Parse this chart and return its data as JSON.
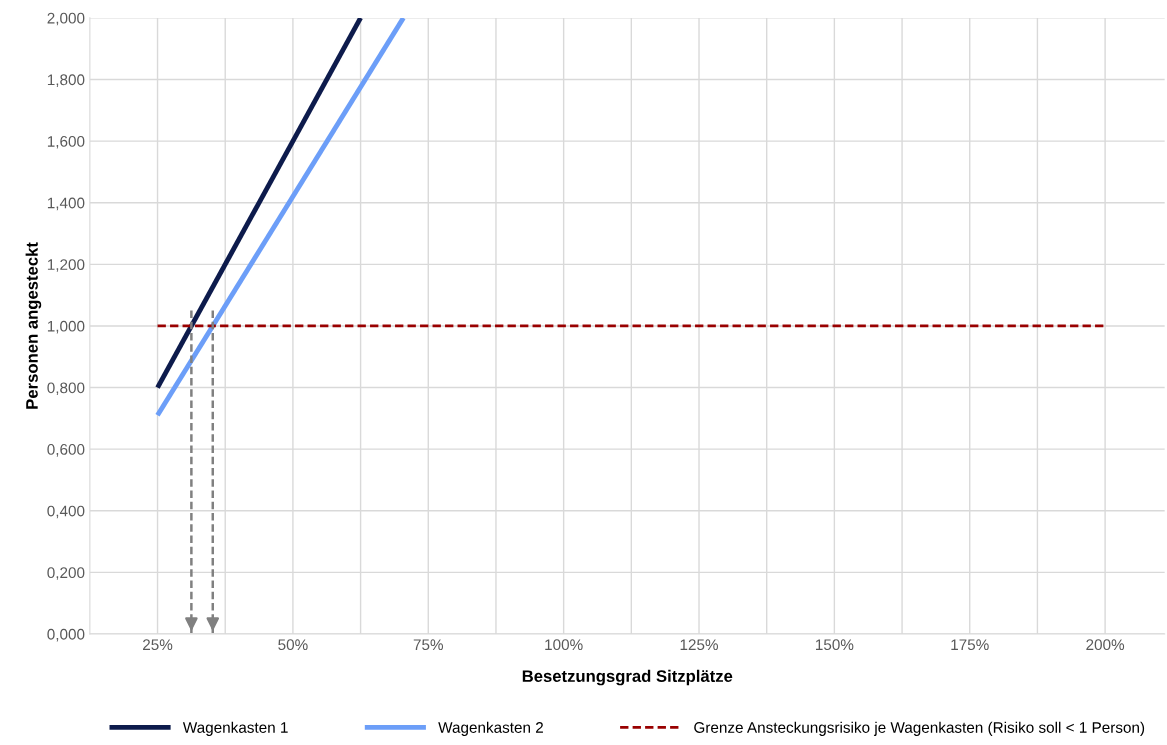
{
  "chart_data": {
    "type": "line",
    "xlabel": "Besetzungsgrad Sitzplätze",
    "ylabel": "Personen angesteckt",
    "series": [
      {
        "name": "Wagenkasten 1",
        "color": "#0d1b4c",
        "x": [
          25,
          62.5
        ],
        "values": [
          0.8,
          2.0
        ]
      },
      {
        "name": "Wagenkasten 2",
        "color": "#6c9ef8",
        "x": [
          25,
          70.4
        ],
        "values": [
          0.71,
          2.0
        ]
      },
      {
        "name": "Grenze Ansteckungsrisiko je Wagenkasten (Risiko soll < 1 Person)",
        "color": "#990000",
        "line_style": "dashed",
        "x": [
          25,
          200
        ],
        "values": [
          1.0,
          1.0
        ]
      }
    ],
    "ref_lines": [
      {
        "axis": "x",
        "value": 31.25,
        "color": "#808080",
        "line_style": "dashed"
      },
      {
        "axis": "x",
        "value": 35.2,
        "color": "#808080",
        "line_style": "dashed"
      }
    ],
    "xlim": [
      12.5,
      211
    ],
    "xticks": [
      {
        "value": 25,
        "label": "25%"
      },
      {
        "value": 37.5,
        "label": null
      },
      {
        "value": 50,
        "label": "50%"
      },
      {
        "value": 62.5,
        "label": null
      },
      {
        "value": 75,
        "label": "75%"
      },
      {
        "value": 87.5,
        "label": null
      },
      {
        "value": 100,
        "label": "100%"
      },
      {
        "value": 112.5,
        "label": null
      },
      {
        "value": 125,
        "label": "125%"
      },
      {
        "value": 137.5,
        "label": null
      },
      {
        "value": 150,
        "label": "150%"
      },
      {
        "value": 162.5,
        "label": null
      },
      {
        "value": 175,
        "label": "175%"
      },
      {
        "value": 187.5,
        "label": null
      },
      {
        "value": 200,
        "label": "200%"
      }
    ],
    "ylim": [
      0,
      2
    ],
    "yticks": [
      {
        "value": 0,
        "label": "0,000"
      },
      {
        "value": 0.2,
        "label": "0,200"
      },
      {
        "value": 0.4,
        "label": "0,400"
      },
      {
        "value": 0.6,
        "label": "0,600"
      },
      {
        "value": 0.8,
        "label": "0,800"
      },
      {
        "value": 1.0,
        "label": "1,000"
      },
      {
        "value": 1.2,
        "label": "1,200"
      },
      {
        "value": 1.4,
        "label": "1,400"
      },
      {
        "value": 1.6,
        "label": "1,600"
      },
      {
        "value": 1.8,
        "label": "1,800"
      },
      {
        "value": 2.0,
        "label": "2,000"
      }
    ],
    "grid": true,
    "legend": "bottom",
    "marker": "none",
    "line_style": "solid"
  }
}
